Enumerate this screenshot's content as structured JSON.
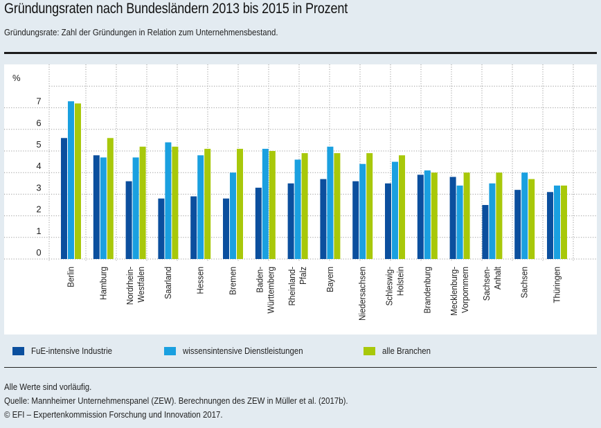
{
  "header": {
    "title": "Gründungsraten nach Bundesländern 2013 bis 2015 in Prozent",
    "subtitle": "Gründungsrate: Zahl der Gründungen in Relation zum Unternehmensbestand."
  },
  "colors": {
    "fue_industrie": "#0b4f9e",
    "wissensintensive_dl": "#1aa0e0",
    "alle_branchen": "#a8c80a",
    "grid": "#9a9a9a",
    "background": "#e3ebf1"
  },
  "chart_data": {
    "type": "bar",
    "title": "Gründungsraten nach Bundesländern 2013 bis 2015 in Prozent",
    "xlabel": "",
    "ylabel": "%",
    "ylim": [
      0,
      8
    ],
    "yticks": [
      0,
      1,
      2,
      3,
      4,
      5,
      6,
      7
    ],
    "grid": true,
    "legend_position": "bottom",
    "categories": [
      "Berlin",
      "Hamburg",
      "Nordrhein-\nWestfalen",
      "Saarland",
      "Hessen",
      "Bremen",
      "Baden-\nWürttemberg",
      "Rheinland-\nPfalz",
      "Bayern",
      "Niedersachsen",
      "Schleswig-\nHolstein",
      "Brandenburg",
      "Mecklenburg-\nVorpommern",
      "Sachsen-\nAnhalt",
      "Sachsen",
      "Thüringen"
    ],
    "series": [
      {
        "name": "FuE-intensive Industrie",
        "color": "#0b4f9e",
        "values": [
          5.6,
          4.8,
          3.6,
          2.8,
          2.9,
          2.8,
          3.3,
          3.5,
          3.7,
          3.6,
          3.5,
          3.9,
          3.8,
          2.5,
          3.2,
          3.1
        ]
      },
      {
        "name": "wissensintensive Dienstleistungen",
        "color": "#1aa0e0",
        "values": [
          7.3,
          4.7,
          4.7,
          5.4,
          4.8,
          4.0,
          5.1,
          4.6,
          5.2,
          4.4,
          4.5,
          4.1,
          3.4,
          3.5,
          4.0,
          3.4
        ]
      },
      {
        "name": "alle Branchen",
        "color": "#a8c80a",
        "values": [
          7.2,
          5.6,
          5.2,
          5.2,
          5.1,
          5.1,
          5.0,
          4.9,
          4.9,
          4.9,
          4.8,
          4.0,
          4.0,
          4.0,
          3.7,
          3.4
        ]
      }
    ]
  },
  "legend": [
    {
      "label": "FuE-intensive Industrie",
      "color": "#0b4f9e"
    },
    {
      "label": "wissensintensive Dienstleistungen",
      "color": "#1aa0e0"
    },
    {
      "label": "alle Branchen",
      "color": "#a8c80a"
    }
  ],
  "footer": {
    "note": "Alle Werte sind vorläufig.",
    "source": "Quelle: Mannheimer Unternehmenspanel (ZEW). Berechnungen des ZEW in Müller et al. (2017b).",
    "copyright": "© EFI – Expertenkommission Forschung und Innovation 2017."
  }
}
